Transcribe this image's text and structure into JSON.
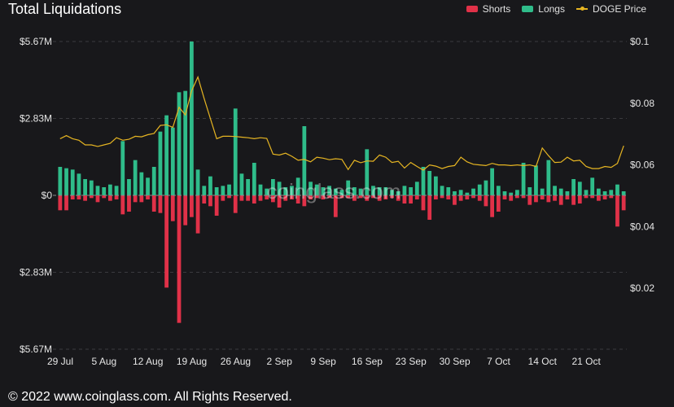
{
  "header": {
    "title": "Total Liquidations"
  },
  "legend": {
    "shorts": "Shorts",
    "longs": "Longs",
    "price": "DOGE Price"
  },
  "colors": {
    "shorts": "#e03148",
    "longs": "#2fbc8a",
    "price": "#e6b522",
    "background": "#18181b"
  },
  "watermark": "coinglass.com",
  "footer": {
    "copyright": "© 2022 www.coinglass.com. All Rights Reserved."
  },
  "chart_data": {
    "type": "bar",
    "title": "Total Liquidations",
    "left_axis": {
      "ticks": [
        "$5.67M",
        "$2.83M",
        "$0",
        "$2.83M",
        "$5.67M"
      ],
      "range_musd": [
        -5.67,
        5.67
      ]
    },
    "right_axis": {
      "ticks": [
        "$0.1",
        "$0.08",
        "$0.06",
        "$0.04",
        "$0.02"
      ],
      "range_usd": [
        0,
        0.1
      ]
    },
    "x_ticks": [
      "29 Jul",
      "5 Aug",
      "12 Aug",
      "19 Aug",
      "26 Aug",
      "2 Sep",
      "9 Sep",
      "16 Sep",
      "23 Sep",
      "30 Sep",
      "7 Oct",
      "14 Oct",
      "21 Oct"
    ],
    "x_tick_day_index": [
      0,
      7,
      14,
      21,
      28,
      35,
      42,
      49,
      56,
      63,
      70,
      77,
      84
    ],
    "grid": true,
    "legend_position": "top-right",
    "series": [
      {
        "name": "Longs",
        "values": [
          1.05,
          1.0,
          0.95,
          0.8,
          0.6,
          0.55,
          0.35,
          0.3,
          0.4,
          0.35,
          2.0,
          0.6,
          1.3,
          0.85,
          0.65,
          1.05,
          2.35,
          2.95,
          2.5,
          3.8,
          3.85,
          5.67,
          0.95,
          0.35,
          0.7,
          0.3,
          0.35,
          0.4,
          3.2,
          0.8,
          0.6,
          1.2,
          0.4,
          0.25,
          0.6,
          0.5,
          0.3,
          0.35,
          0.65,
          2.55,
          0.5,
          0.4,
          0.3,
          0.35,
          0.25,
          0.2,
          0.55,
          0.3,
          0.25,
          1.7,
          0.35,
          0.3,
          0.3,
          0.2,
          0.15,
          0.35,
          0.3,
          0.5,
          1.05,
          0.9,
          0.7,
          0.35,
          0.3,
          0.15,
          0.2,
          0.1,
          0.25,
          0.4,
          0.55,
          1.0,
          0.35,
          0.15,
          0.1,
          0.2,
          1.2,
          0.3,
          1.1,
          0.25,
          1.3,
          0.35,
          0.25,
          0.15,
          0.6,
          0.5,
          0.2,
          0.65,
          0.25,
          0.15,
          0.2,
          0.4,
          0.15
        ],
        "color_key": "longs"
      },
      {
        "name": "Shorts",
        "values": [
          0.55,
          0.55,
          0.15,
          0.15,
          0.2,
          0.1,
          0.25,
          0.1,
          0.2,
          0.15,
          0.7,
          0.6,
          0.25,
          0.25,
          0.15,
          0.6,
          0.65,
          3.4,
          0.95,
          4.7,
          1.1,
          0.8,
          1.4,
          0.3,
          0.4,
          0.75,
          0.2,
          0.1,
          0.65,
          0.2,
          0.2,
          0.3,
          0.2,
          0.15,
          0.25,
          0.45,
          0.2,
          0.15,
          0.3,
          0.4,
          0.15,
          0.1,
          0.15,
          0.1,
          0.8,
          0.1,
          0.1,
          0.2,
          0.1,
          0.2,
          0.1,
          0.2,
          0.15,
          0.1,
          0.2,
          0.3,
          0.3,
          0.15,
          0.55,
          0.9,
          0.15,
          0.1,
          0.15,
          0.35,
          0.2,
          0.15,
          0.1,
          0.2,
          0.4,
          0.8,
          0.6,
          0.15,
          0.2,
          0.1,
          0.1,
          0.35,
          0.25,
          0.15,
          0.25,
          0.2,
          0.35,
          0.15,
          0.35,
          0.3,
          0.1,
          0.1,
          0.2,
          0.15,
          0.1,
          1.15,
          0.55
        ],
        "color_key": "shorts"
      },
      {
        "name": "DOGE Price",
        "axis": "right",
        "color_key": "price",
        "values": [
          0.0685,
          0.0695,
          0.0685,
          0.068,
          0.0665,
          0.0665,
          0.066,
          0.0665,
          0.067,
          0.0688,
          0.068,
          0.0683,
          0.0693,
          0.0691,
          0.0698,
          0.0702,
          0.0728,
          0.073,
          0.0722,
          0.0787,
          0.0762,
          0.084,
          0.0885,
          0.0815,
          0.075,
          0.0685,
          0.0693,
          0.0693,
          0.0692,
          0.069,
          0.0688,
          0.0685,
          0.0688,
          0.0686,
          0.0635,
          0.0632,
          0.0638,
          0.0628,
          0.0615,
          0.0618,
          0.061,
          0.0625,
          0.0622,
          0.0617,
          0.062,
          0.0618,
          0.0585,
          0.0615,
          0.0607,
          0.0613,
          0.0612,
          0.0632,
          0.0625,
          0.0608,
          0.0612,
          0.059,
          0.0608,
          0.0595,
          0.0583,
          0.06,
          0.0596,
          0.0588,
          0.0595,
          0.0598,
          0.0625,
          0.061,
          0.0602,
          0.06,
          0.0598,
          0.0605,
          0.06,
          0.06,
          0.0598,
          0.06,
          0.0598,
          0.06,
          0.0595,
          0.0655,
          0.063,
          0.0608,
          0.0609,
          0.0625,
          0.0613,
          0.0615,
          0.0595,
          0.0588,
          0.0588,
          0.0595,
          0.0592,
          0.0605,
          0.0662
        ]
      }
    ]
  }
}
